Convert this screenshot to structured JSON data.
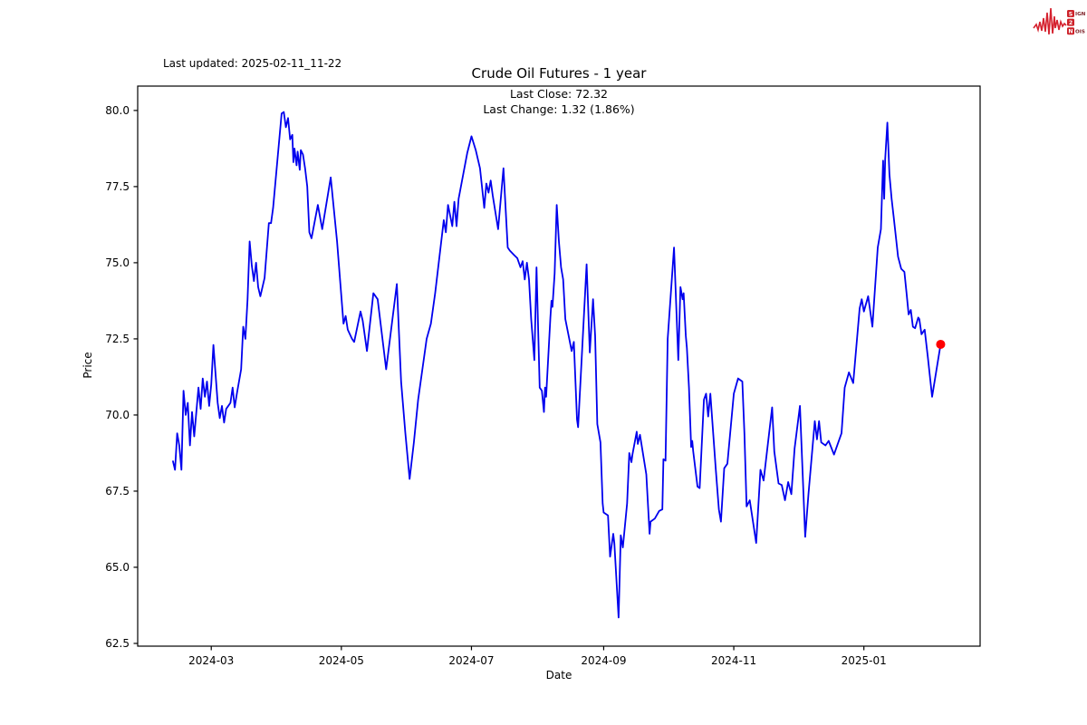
{
  "header": {
    "last_updated": "Last updated: 2025-02-11_11-22",
    "title": "Crude Oil Futures - 1 year"
  },
  "annotation": {
    "last_close": "Last Close: 72.32",
    "last_change": "Last Change: 1.32 (1.86%)"
  },
  "logo": {
    "rows": [
      {
        "box": "S",
        "rest": "IGNAL"
      },
      {
        "box": "2",
        "rest": ""
      },
      {
        "box": "N",
        "rest": "OISE"
      }
    ],
    "box_color": "#cd2129",
    "text_color": "#7d2027",
    "wave_color": "#d5212e"
  },
  "chart_data": {
    "type": "line",
    "title": "Crude Oil Futures - 1 year",
    "xlabel": "Date",
    "ylabel": "Price",
    "last_close": 72.32,
    "last_change": 1.32,
    "last_change_pct": 1.86,
    "line_color": "#0000ee",
    "marker_color": "#ff0000",
    "axis_color": "#000000",
    "grid": false,
    "xlim_days": [
      -16.5,
      378.5
    ],
    "ylim": [
      62.41,
      80.8
    ],
    "x_ticks": [
      {
        "label": "2024-03",
        "t": 18
      },
      {
        "label": "2024-05",
        "t": 79
      },
      {
        "label": "2024-07",
        "t": 140
      },
      {
        "label": "2024-09",
        "t": 202
      },
      {
        "label": "2024-11",
        "t": 263
      },
      {
        "label": "2025-01",
        "t": 324
      }
    ],
    "y_ticks": [
      62.5,
      65.0,
      67.5,
      70.0,
      72.5,
      75.0,
      77.5,
      80.0
    ],
    "start_date": "2024-02-12",
    "series": [
      {
        "name": "Crude Oil Futures price",
        "points": [
          [
            0,
            68.5
          ],
          [
            1,
            68.2
          ],
          [
            2,
            69.4
          ],
          [
            3,
            69.0
          ],
          [
            4,
            68.2
          ],
          [
            5,
            70.8
          ],
          [
            6,
            70.0
          ],
          [
            7,
            70.4
          ],
          [
            8,
            69.0
          ],
          [
            9,
            70.1
          ],
          [
            10,
            69.3
          ],
          [
            12,
            70.9
          ],
          [
            13,
            70.2
          ],
          [
            14,
            71.2
          ],
          [
            15,
            70.6
          ],
          [
            16,
            71.1
          ],
          [
            17,
            70.3
          ],
          [
            18,
            71.0
          ],
          [
            19,
            72.3
          ],
          [
            21,
            70.4
          ],
          [
            22,
            69.9
          ],
          [
            23,
            70.3
          ],
          [
            24,
            69.75
          ],
          [
            25,
            70.2
          ],
          [
            27,
            70.4
          ],
          [
            28,
            70.9
          ],
          [
            29,
            70.25
          ],
          [
            30,
            70.7
          ],
          [
            32,
            71.5
          ],
          [
            33,
            72.9
          ],
          [
            34,
            72.5
          ],
          [
            35,
            73.8
          ],
          [
            36,
            75.7
          ],
          [
            37,
            74.9
          ],
          [
            38,
            74.4
          ],
          [
            39,
            75.0
          ],
          [
            40,
            74.2
          ],
          [
            41,
            73.9
          ],
          [
            43,
            74.5
          ],
          [
            45,
            76.3
          ],
          [
            46,
            76.3
          ],
          [
            47,
            76.8
          ],
          [
            51,
            79.9
          ],
          [
            52,
            79.95
          ],
          [
            53,
            79.45
          ],
          [
            54,
            79.75
          ],
          [
            55,
            79.05
          ],
          [
            56,
            79.2
          ],
          [
            56.5,
            78.3
          ],
          [
            57,
            78.75
          ],
          [
            58,
            78.2
          ],
          [
            58.5,
            78.65
          ],
          [
            59.5,
            78.05
          ],
          [
            60,
            78.7
          ],
          [
            61,
            78.55
          ],
          [
            62,
            78.1
          ],
          [
            63,
            77.5
          ],
          [
            64,
            76.0
          ],
          [
            65,
            75.8
          ],
          [
            68,
            76.9
          ],
          [
            70,
            76.1
          ],
          [
            74,
            77.8
          ],
          [
            77,
            75.7
          ],
          [
            80,
            73.0
          ],
          [
            81,
            73.25
          ],
          [
            82,
            72.8
          ],
          [
            84,
            72.5
          ],
          [
            85,
            72.4
          ],
          [
            88,
            73.4
          ],
          [
            89,
            73.1
          ],
          [
            91,
            72.1
          ],
          [
            94,
            74.0
          ],
          [
            96,
            73.8
          ],
          [
            100,
            71.5
          ],
          [
            105,
            74.3
          ],
          [
            107,
            71.1
          ],
          [
            109,
            69.4
          ],
          [
            111,
            67.9
          ],
          [
            113,
            69.1
          ],
          [
            115,
            70.5
          ],
          [
            119,
            72.5
          ],
          [
            121,
            73.0
          ],
          [
            123,
            74.0
          ],
          [
            127,
            76.4
          ],
          [
            128,
            76.0
          ],
          [
            129,
            76.9
          ],
          [
            131,
            76.2
          ],
          [
            132,
            77.0
          ],
          [
            133,
            76.2
          ],
          [
            134,
            77.1
          ],
          [
            138,
            78.6
          ],
          [
            140,
            79.15
          ],
          [
            142,
            78.7
          ],
          [
            144,
            78.1
          ],
          [
            146,
            76.8
          ],
          [
            147,
            77.6
          ],
          [
            148,
            77.3
          ],
          [
            149,
            77.7
          ],
          [
            150,
            77.2
          ],
          [
            152.5,
            76.1
          ],
          [
            155,
            78.1
          ],
          [
            157,
            75.5
          ],
          [
            158,
            75.4
          ],
          [
            160,
            75.25
          ],
          [
            161.5,
            75.15
          ],
          [
            163,
            74.85
          ],
          [
            164,
            75.05
          ],
          [
            165,
            74.45
          ],
          [
            166,
            75.0
          ],
          [
            167,
            74.45
          ],
          [
            168,
            73.15
          ],
          [
            169.5,
            71.8
          ],
          [
            170.5,
            74.85
          ],
          [
            172,
            70.9
          ],
          [
            173,
            70.8
          ],
          [
            174,
            70.1
          ],
          [
            174.5,
            70.9
          ],
          [
            175,
            70.6
          ],
          [
            177,
            73.2
          ],
          [
            177.5,
            73.75
          ],
          [
            178,
            73.55
          ],
          [
            179,
            74.65
          ],
          [
            180,
            76.9
          ],
          [
            181,
            75.7
          ],
          [
            182,
            74.85
          ],
          [
            183,
            74.45
          ],
          [
            184,
            73.15
          ],
          [
            187,
            72.1
          ],
          [
            188,
            72.4
          ],
          [
            189.5,
            69.85
          ],
          [
            190,
            69.6
          ],
          [
            194,
            74.95
          ],
          [
            195.5,
            72.05
          ],
          [
            197,
            73.8
          ],
          [
            198,
            72.6
          ],
          [
            199,
            69.7
          ],
          [
            200.5,
            69.1
          ],
          [
            201.5,
            67.1
          ],
          [
            202,
            66.8
          ],
          [
            204,
            66.7
          ],
          [
            205,
            65.35
          ],
          [
            206.5,
            66.1
          ],
          [
            207,
            65.8
          ],
          [
            209,
            63.35
          ],
          [
            210,
            66.05
          ],
          [
            211,
            65.65
          ],
          [
            213,
            67.1
          ],
          [
            214,
            68.75
          ],
          [
            215,
            68.45
          ],
          [
            215.5,
            68.7
          ],
          [
            217.5,
            69.45
          ],
          [
            218,
            69.05
          ],
          [
            219,
            69.35
          ],
          [
            222,
            68.05
          ],
          [
            223.5,
            66.1
          ],
          [
            224,
            66.5
          ],
          [
            226,
            66.6
          ],
          [
            228,
            66.85
          ],
          [
            229.5,
            66.9
          ],
          [
            230,
            68.55
          ],
          [
            231,
            68.5
          ],
          [
            232,
            72.5
          ],
          [
            235,
            75.5
          ],
          [
            237,
            71.8
          ],
          [
            238,
            74.2
          ],
          [
            239,
            73.8
          ],
          [
            239.5,
            74.0
          ],
          [
            240.5,
            72.6
          ],
          [
            241,
            72.2
          ],
          [
            242,
            70.9
          ],
          [
            243,
            68.95
          ],
          [
            243.5,
            69.15
          ],
          [
            244,
            68.8
          ],
          [
            246,
            67.65
          ],
          [
            247,
            67.6
          ],
          [
            249,
            70.5
          ],
          [
            250,
            70.7
          ],
          [
            251,
            69.95
          ],
          [
            252,
            70.7
          ],
          [
            254.5,
            68.25
          ],
          [
            256,
            66.9
          ],
          [
            257,
            66.5
          ],
          [
            258.5,
            68.25
          ],
          [
            260,
            68.4
          ],
          [
            263,
            70.7
          ],
          [
            265,
            71.2
          ],
          [
            267,
            71.1
          ],
          [
            268,
            69.4
          ],
          [
            269,
            67.0
          ],
          [
            270.5,
            67.2
          ],
          [
            273.5,
            65.8
          ],
          [
            275.5,
            68.2
          ],
          [
            277,
            67.85
          ],
          [
            281,
            70.25
          ],
          [
            282,
            68.8
          ],
          [
            284,
            67.75
          ],
          [
            285.5,
            67.7
          ],
          [
            287,
            67.2
          ],
          [
            288.5,
            67.8
          ],
          [
            290,
            67.4
          ],
          [
            291.5,
            68.9
          ],
          [
            294,
            70.3
          ],
          [
            296.5,
            66.0
          ],
          [
            298,
            67.4
          ],
          [
            301,
            69.8
          ],
          [
            302,
            69.2
          ],
          [
            303,
            69.8
          ],
          [
            304,
            69.1
          ],
          [
            306,
            69.0
          ],
          [
            307.5,
            69.15
          ],
          [
            310,
            68.7
          ],
          [
            313.5,
            69.4
          ],
          [
            315,
            70.9
          ],
          [
            317,
            71.4
          ],
          [
            319,
            71.05
          ],
          [
            322,
            73.5
          ],
          [
            323,
            73.8
          ],
          [
            324,
            73.4
          ],
          [
            326,
            73.9
          ],
          [
            328,
            72.9
          ],
          [
            330.5,
            75.5
          ],
          [
            332,
            76.1
          ],
          [
            333,
            78.35
          ],
          [
            333.5,
            77.1
          ],
          [
            334,
            78.4
          ],
          [
            335,
            79.6
          ],
          [
            336,
            77.9
          ],
          [
            337,
            77.1
          ],
          [
            338,
            76.5
          ],
          [
            339,
            75.85
          ],
          [
            340,
            75.2
          ],
          [
            341.5,
            74.8
          ],
          [
            343,
            74.7
          ],
          [
            344,
            74.0
          ],
          [
            345,
            73.3
          ],
          [
            346,
            73.45
          ],
          [
            347,
            72.9
          ],
          [
            348,
            72.85
          ],
          [
            349.5,
            73.2
          ],
          [
            350,
            73.15
          ],
          [
            351,
            72.65
          ],
          [
            352.5,
            72.8
          ],
          [
            354,
            71.9
          ],
          [
            356,
            70.6
          ],
          [
            360,
            72.32
          ]
        ]
      }
    ]
  }
}
